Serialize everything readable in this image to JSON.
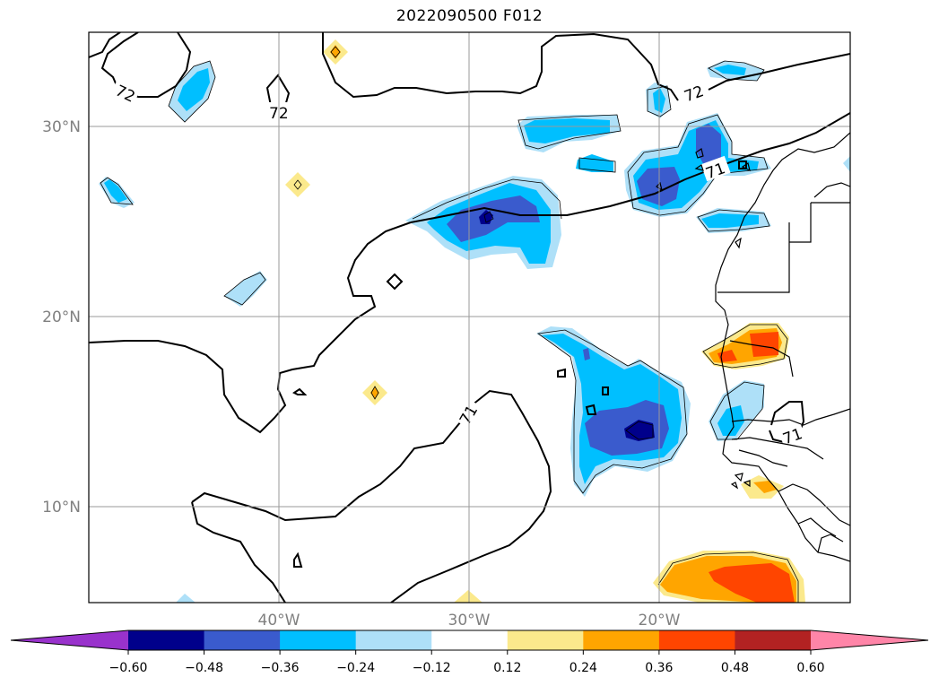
{
  "title": "2022090500 F012",
  "map": {
    "lat_ticks": [
      "30°N",
      "20°N",
      "10°N"
    ],
    "lon_ticks": [
      "40°W",
      "30°W",
      "20°W"
    ],
    "contour_labels": [
      "72",
      "72",
      "72",
      "71",
      "71",
      "71"
    ]
  },
  "colorbar": {
    "colors": [
      "#9932cc",
      "#00008b",
      "#3a5bcd",
      "#00bfff",
      "#aee0f8",
      "#ffffff",
      "#fbe98c",
      "#ffa500",
      "#ff4500",
      "#b22222",
      "#ff85a8"
    ],
    "tick_labels": [
      "−0.60",
      "−0.48",
      "−0.36",
      "−0.24",
      "−0.12",
      "0.12",
      "0.24",
      "0.36",
      "0.48",
      "0.60"
    ]
  }
}
